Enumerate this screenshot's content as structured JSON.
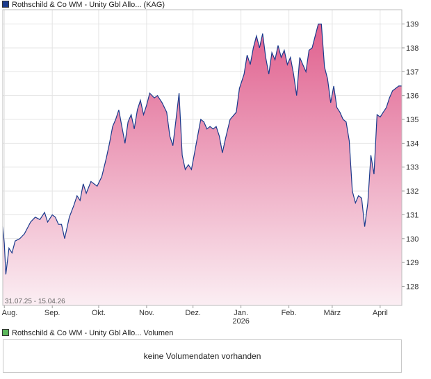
{
  "legend_main": {
    "label": "Rothschild & Co WM - Unity Gbl Allo... (KAG)",
    "color": "#1a3a8c"
  },
  "legend_volume": {
    "label": "Rothschild & Co WM - Unity Gbl Allo... Volumen",
    "color": "#5cb85c"
  },
  "volume_panel": {
    "message": "keine Volumendaten vorhanden"
  },
  "chart_data": {
    "type": "area",
    "date_range_label": "31.07.25 - 15.04.26",
    "ylim": [
      127.2,
      139.6
    ],
    "y_ticks": [
      128,
      129,
      130,
      131,
      132,
      133,
      134,
      135,
      136,
      137,
      138,
      139
    ],
    "x_range": [
      "2025-07-31",
      "2026-04-15"
    ],
    "x_ticks": [
      {
        "date": "2025-08-01",
        "label": "Aug."
      },
      {
        "date": "2025-09-01",
        "label": "Sep."
      },
      {
        "date": "2025-10-01",
        "label": "Okt."
      },
      {
        "date": "2025-11-01",
        "label": "Nov."
      },
      {
        "date": "2025-12-01",
        "label": "Dez."
      },
      {
        "date": "2026-01-01",
        "label": "Jan.",
        "sublabel": "2026"
      },
      {
        "date": "2026-02-01",
        "label": "Feb."
      },
      {
        "date": "2026-03-01",
        "label": "März"
      },
      {
        "date": "2026-04-01",
        "label": "April"
      }
    ],
    "grid": true,
    "colors": {
      "line": "#1a3a8c",
      "fill_top": "#e0608e",
      "fill_bottom": "#fbeef3",
      "grid": "#e4e4e4"
    },
    "series": [
      {
        "values": [
          [
            "2025-07-31",
            130.5
          ],
          [
            "2025-08-01",
            129.8
          ],
          [
            "2025-08-02",
            128.5
          ],
          [
            "2025-08-04",
            129.6
          ],
          [
            "2025-08-06",
            129.4
          ],
          [
            "2025-08-08",
            129.9
          ],
          [
            "2025-08-11",
            130.0
          ],
          [
            "2025-08-14",
            130.2
          ],
          [
            "2025-08-18",
            130.7
          ],
          [
            "2025-08-21",
            130.9
          ],
          [
            "2025-08-24",
            130.8
          ],
          [
            "2025-08-27",
            131.1
          ],
          [
            "2025-08-29",
            130.7
          ],
          [
            "2025-09-01",
            131.0
          ],
          [
            "2025-09-03",
            130.9
          ],
          [
            "2025-09-05",
            130.6
          ],
          [
            "2025-09-07",
            130.6
          ],
          [
            "2025-09-09",
            130.0
          ],
          [
            "2025-09-12",
            130.9
          ],
          [
            "2025-09-15",
            131.4
          ],
          [
            "2025-09-17",
            131.8
          ],
          [
            "2025-09-19",
            131.6
          ],
          [
            "2025-09-21",
            132.3
          ],
          [
            "2025-09-23",
            131.9
          ],
          [
            "2025-09-26",
            132.4
          ],
          [
            "2025-09-30",
            132.2
          ],
          [
            "2025-10-03",
            132.6
          ],
          [
            "2025-10-06",
            133.4
          ],
          [
            "2025-10-08",
            134.0
          ],
          [
            "2025-10-10",
            134.7
          ],
          [
            "2025-10-12",
            135.0
          ],
          [
            "2025-10-14",
            135.4
          ],
          [
            "2025-10-16",
            134.7
          ],
          [
            "2025-10-18",
            134.0
          ],
          [
            "2025-10-20",
            134.9
          ],
          [
            "2025-10-22",
            135.2
          ],
          [
            "2025-10-24",
            134.6
          ],
          [
            "2025-10-26",
            135.4
          ],
          [
            "2025-10-28",
            135.8
          ],
          [
            "2025-10-30",
            135.2
          ],
          [
            "2025-11-01",
            135.6
          ],
          [
            "2025-11-03",
            136.1
          ],
          [
            "2025-11-06",
            135.9
          ],
          [
            "2025-11-08",
            136.0
          ],
          [
            "2025-11-11",
            135.7
          ],
          [
            "2025-11-14",
            135.3
          ],
          [
            "2025-11-16",
            134.3
          ],
          [
            "2025-11-18",
            133.9
          ],
          [
            "2025-11-20",
            135.0
          ],
          [
            "2025-11-22",
            136.1
          ],
          [
            "2025-11-24",
            133.5
          ],
          [
            "2025-11-26",
            132.9
          ],
          [
            "2025-11-28",
            133.1
          ],
          [
            "2025-11-30",
            132.9
          ],
          [
            "2025-12-02",
            133.6
          ],
          [
            "2025-12-04",
            134.3
          ],
          [
            "2025-12-06",
            135.0
          ],
          [
            "2025-12-08",
            134.9
          ],
          [
            "2025-12-10",
            134.6
          ],
          [
            "2025-12-12",
            134.7
          ],
          [
            "2025-12-14",
            134.6
          ],
          [
            "2025-12-16",
            134.7
          ],
          [
            "2025-12-18",
            134.3
          ],
          [
            "2025-12-20",
            133.6
          ],
          [
            "2025-12-22",
            134.2
          ],
          [
            "2025-12-25",
            135.0
          ],
          [
            "2025-12-29",
            135.3
          ],
          [
            "2025-12-31",
            136.3
          ],
          [
            "2026-01-03",
            136.9
          ],
          [
            "2026-01-05",
            137.7
          ],
          [
            "2026-01-07",
            137.3
          ],
          [
            "2026-01-09",
            138.0
          ],
          [
            "2026-01-11",
            138.5
          ],
          [
            "2026-01-13",
            138.0
          ],
          [
            "2026-01-15",
            138.6
          ],
          [
            "2026-01-17",
            137.6
          ],
          [
            "2026-01-19",
            136.9
          ],
          [
            "2026-01-21",
            137.8
          ],
          [
            "2026-01-23",
            137.5
          ],
          [
            "2026-01-25",
            138.1
          ],
          [
            "2026-01-27",
            137.6
          ],
          [
            "2026-01-29",
            137.9
          ],
          [
            "2026-01-31",
            137.3
          ],
          [
            "2026-02-02",
            137.6
          ],
          [
            "2026-02-04",
            136.9
          ],
          [
            "2026-02-06",
            136.0
          ],
          [
            "2026-02-08",
            137.6
          ],
          [
            "2026-02-10",
            137.3
          ],
          [
            "2026-02-12",
            137.0
          ],
          [
            "2026-02-14",
            137.9
          ],
          [
            "2026-02-16",
            138.0
          ],
          [
            "2026-02-18",
            138.5
          ],
          [
            "2026-02-20",
            139.0
          ],
          [
            "2026-02-22",
            139.0
          ],
          [
            "2026-02-24",
            137.2
          ],
          [
            "2026-02-26",
            136.7
          ],
          [
            "2026-02-28",
            135.7
          ],
          [
            "2026-03-02",
            136.4
          ],
          [
            "2026-03-04",
            135.5
          ],
          [
            "2026-03-06",
            135.3
          ],
          [
            "2026-03-08",
            135.0
          ],
          [
            "2026-03-10",
            134.9
          ],
          [
            "2026-03-12",
            134.1
          ],
          [
            "2026-03-14",
            132.0
          ],
          [
            "2026-03-16",
            131.5
          ],
          [
            "2026-03-18",
            131.8
          ],
          [
            "2026-03-20",
            131.7
          ],
          [
            "2026-03-22",
            130.5
          ],
          [
            "2026-03-24",
            131.5
          ],
          [
            "2026-03-26",
            133.5
          ],
          [
            "2026-03-28",
            132.7
          ],
          [
            "2026-03-30",
            135.2
          ],
          [
            "2026-04-01",
            135.1
          ],
          [
            "2026-04-03",
            135.3
          ],
          [
            "2026-04-05",
            135.5
          ],
          [
            "2026-04-07",
            135.9
          ],
          [
            "2026-04-09",
            136.2
          ],
          [
            "2026-04-11",
            136.3
          ],
          [
            "2026-04-13",
            136.4
          ],
          [
            "2026-04-15",
            136.4
          ]
        ]
      }
    ]
  }
}
